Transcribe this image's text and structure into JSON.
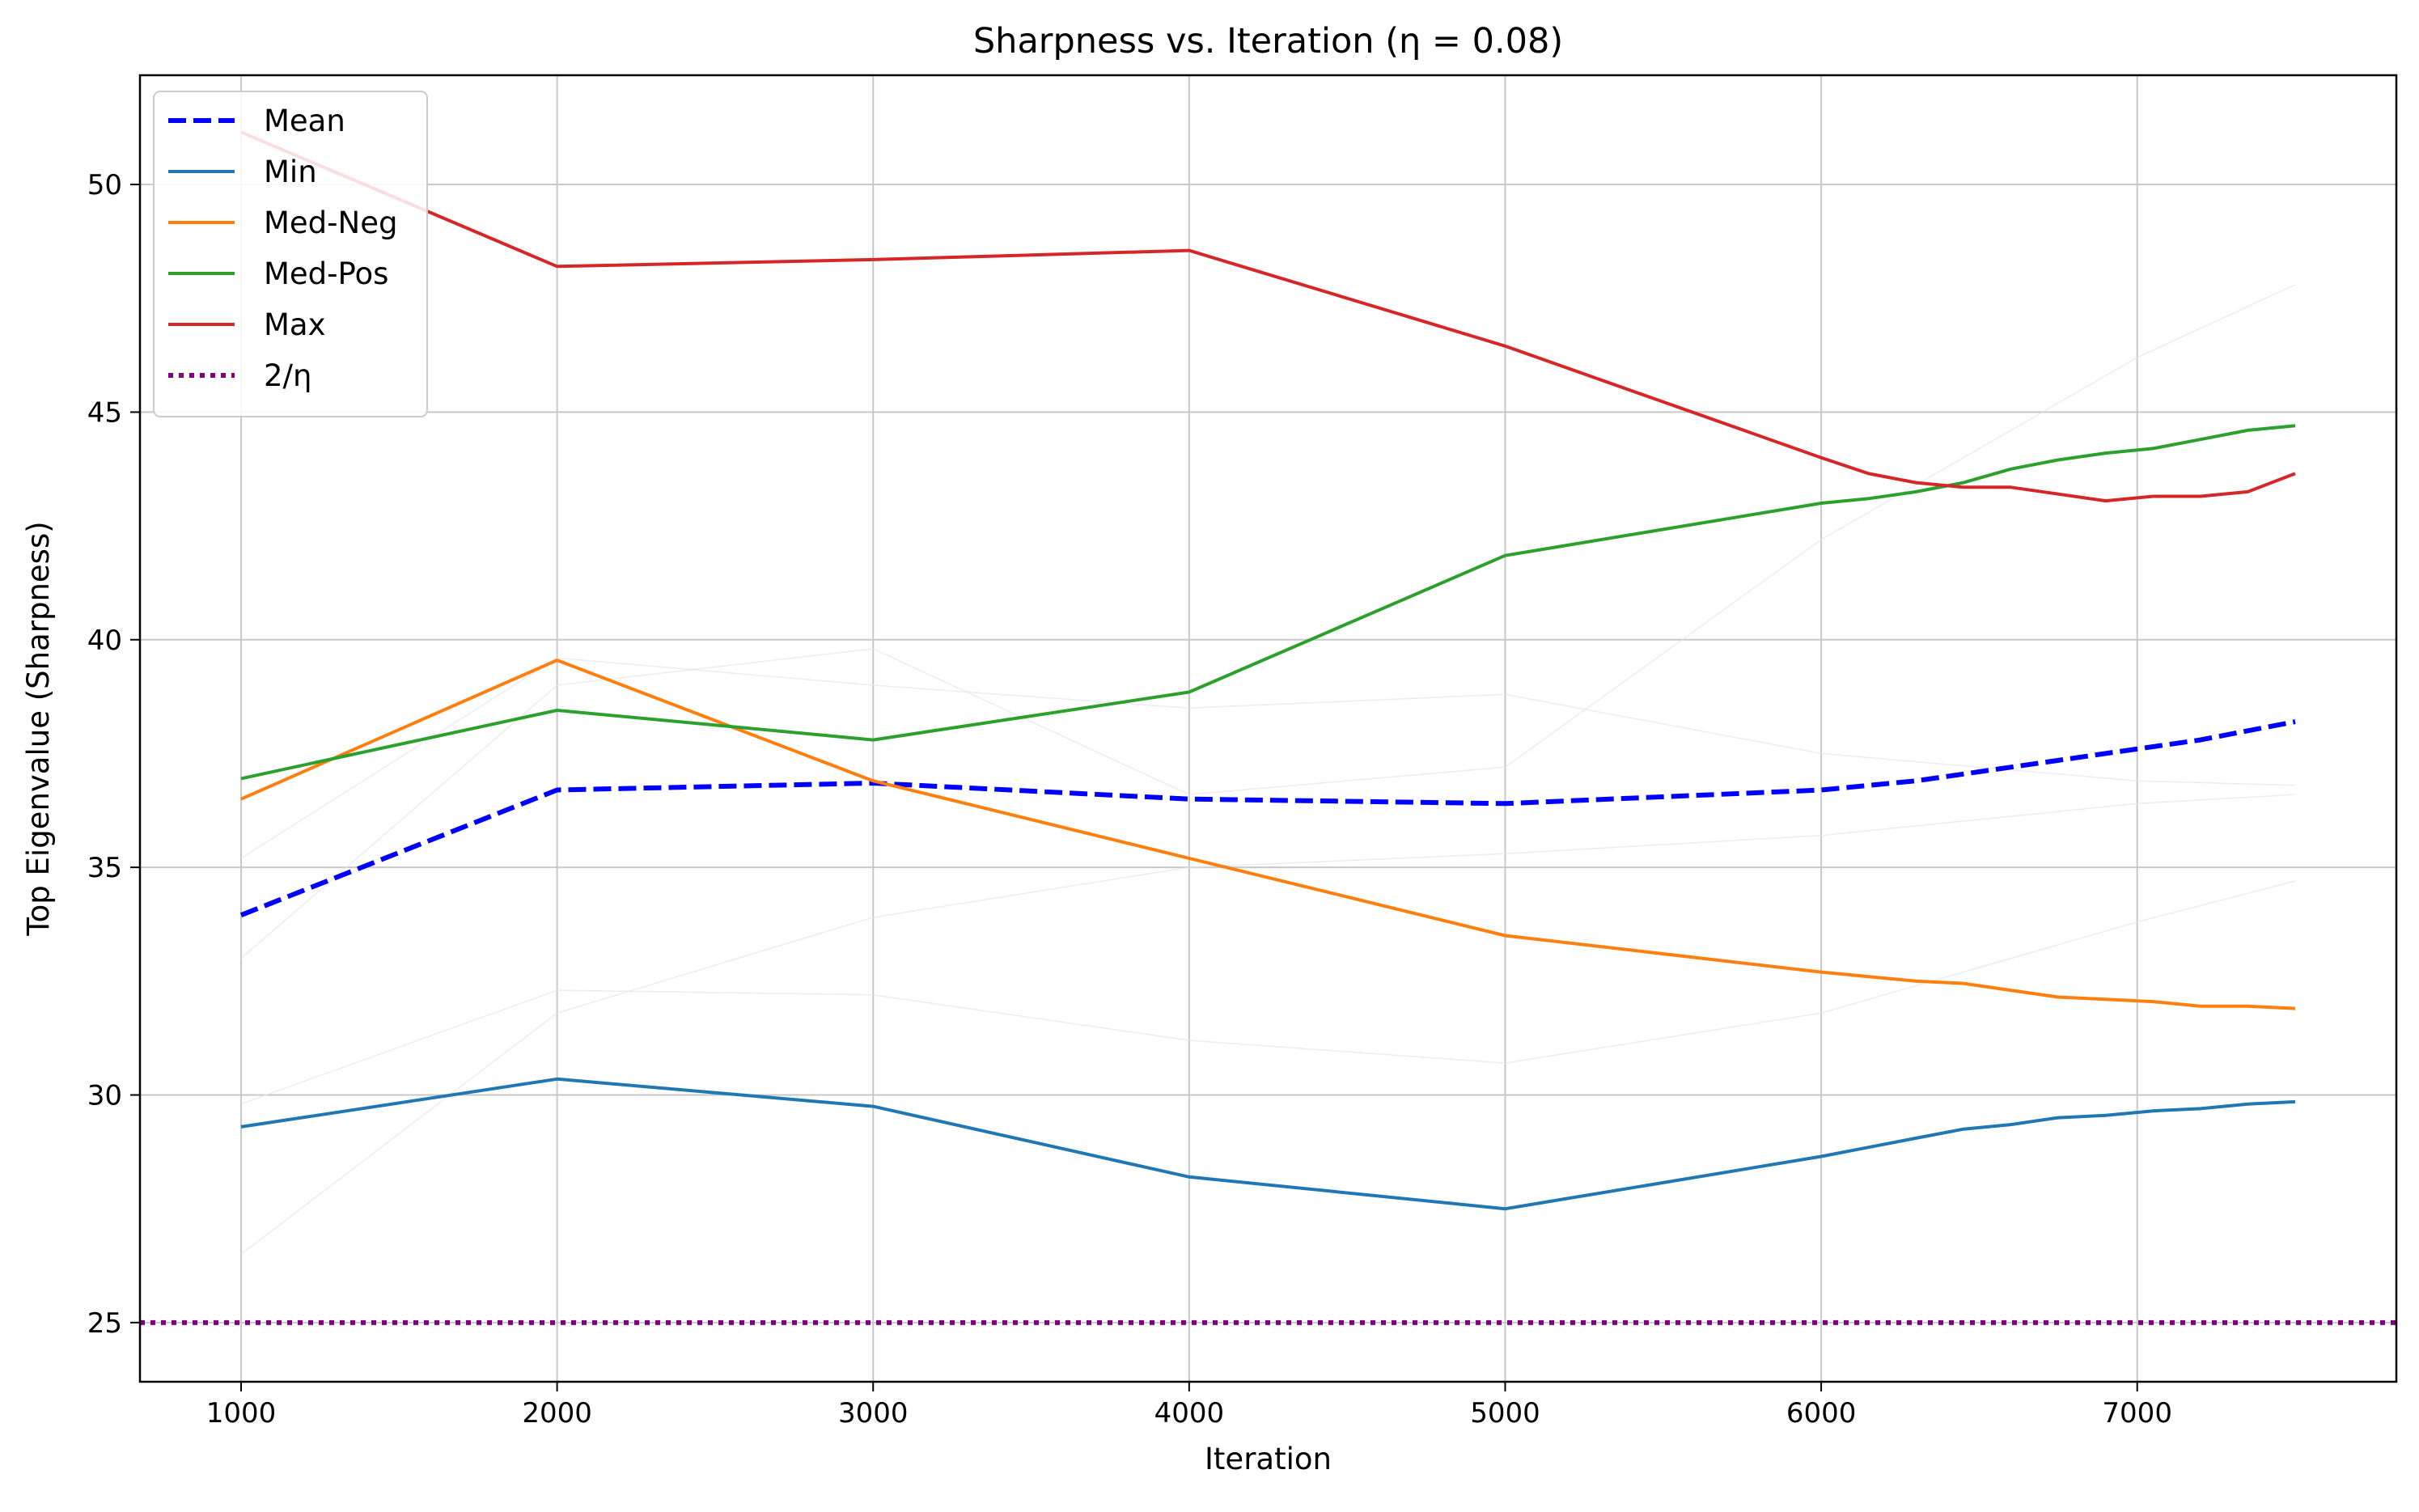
{
  "chart_data": {
    "type": "line",
    "title": "Sharpness vs. Iteration (η = 0.08)",
    "xlabel": "Iteration",
    "ylabel": "Top Eigenvalue (Sharpness)",
    "xlim": [
      680,
      7820
    ],
    "ylim": [
      23.7,
      52.4
    ],
    "xticks": [
      1000,
      2000,
      3000,
      4000,
      5000,
      6000,
      7000
    ],
    "yticks": [
      25,
      30,
      35,
      40,
      45,
      50
    ],
    "grid": true,
    "legend_position": "upper-left",
    "series": [
      {
        "name": "Mean",
        "color": "#0000ff",
        "style": "dashed",
        "x": [
          1000,
          2000,
          3000,
          4000,
          5000,
          6000,
          6150,
          6300,
          6450,
          6600,
          6750,
          6900,
          7050,
          7200,
          7350,
          7500
        ],
        "y": [
          33.95,
          36.7,
          36.85,
          36.5,
          36.4,
          36.7,
          36.8,
          36.9,
          37.05,
          37.2,
          37.35,
          37.5,
          37.65,
          37.8,
          38.0,
          38.2
        ]
      },
      {
        "name": "Min",
        "color": "#1f77b4",
        "style": "solid",
        "x": [
          1000,
          2000,
          3000,
          4000,
          5000,
          6000,
          6150,
          6300,
          6450,
          6600,
          6750,
          6900,
          7050,
          7200,
          7350,
          7500
        ],
        "y": [
          29.3,
          30.35,
          29.75,
          28.2,
          27.5,
          28.65,
          28.85,
          29.05,
          29.25,
          29.35,
          29.5,
          29.55,
          29.65,
          29.7,
          29.8,
          29.85
        ]
      },
      {
        "name": "Med-Neg",
        "color": "#ff7f0e",
        "style": "solid",
        "x": [
          1000,
          2000,
          3000,
          4000,
          5000,
          6000,
          6150,
          6300,
          6450,
          6600,
          6750,
          6900,
          7050,
          7200,
          7350,
          7500
        ],
        "y": [
          36.5,
          39.55,
          36.9,
          35.2,
          33.5,
          32.7,
          32.6,
          32.5,
          32.45,
          32.3,
          32.15,
          32.1,
          32.05,
          31.95,
          31.95,
          31.9
        ]
      },
      {
        "name": "Med-Pos",
        "color": "#2ca02c",
        "style": "solid",
        "x": [
          1000,
          2000,
          3000,
          4000,
          5000,
          6000,
          6150,
          6300,
          6450,
          6600,
          6750,
          6900,
          7050,
          7200,
          7350,
          7500
        ],
        "y": [
          36.95,
          38.45,
          37.8,
          38.85,
          41.85,
          43.0,
          43.1,
          43.25,
          43.45,
          43.75,
          43.95,
          44.1,
          44.2,
          44.4,
          44.6,
          44.7
        ]
      },
      {
        "name": "Max",
        "color": "#d62728",
        "style": "solid",
        "x": [
          1000,
          2000,
          3000,
          4000,
          5000,
          6000,
          6150,
          6300,
          6450,
          6600,
          6750,
          6900,
          7050,
          7200,
          7350,
          7500
        ],
        "y": [
          51.15,
          48.2,
          48.35,
          48.55,
          46.45,
          44.0,
          43.65,
          43.45,
          43.35,
          43.35,
          43.2,
          43.05,
          43.15,
          43.15,
          43.25,
          43.65
        ]
      },
      {
        "name": "2/η",
        "color": "#800080",
        "style": "dotted",
        "hline": 25
      }
    ]
  }
}
